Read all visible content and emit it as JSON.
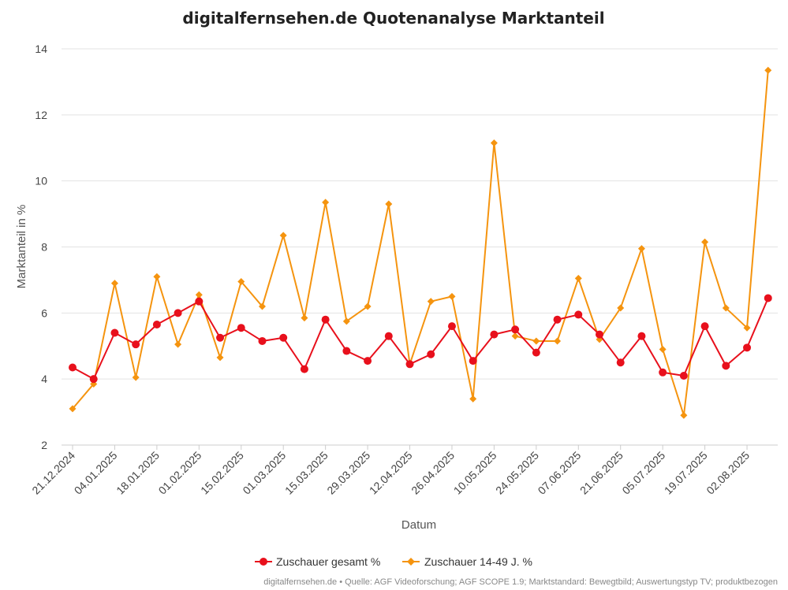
{
  "chart_data": {
    "type": "line",
    "title": "digitalfernsehen.de Quotenanalyse Marktanteil",
    "xlabel": "Datum",
    "ylabel": "Marktanteil in %",
    "ylim": [
      2,
      14
    ],
    "yticks": [
      2,
      4,
      6,
      8,
      10,
      12,
      14
    ],
    "grid": true,
    "legend": "bottom-center",
    "x_tick_labels": [
      "21.12.2024",
      "04.01.2025",
      "18.01.2025",
      "01.02.2025",
      "15.02.2025",
      "01.03.2025",
      "15.03.2025",
      "29.03.2025",
      "12.04.2025",
      "26.04.2025",
      "10.05.2025",
      "24.05.2025",
      "07.06.2025",
      "21.06.2025",
      "05.07.2025",
      "19.07.2025",
      "02.08.2025"
    ],
    "x": [
      "21.12.2024",
      "28.12.2024",
      "04.01.2025",
      "11.01.2025",
      "18.01.2025",
      "25.01.2025",
      "01.02.2025",
      "08.02.2025",
      "15.02.2025",
      "22.02.2025",
      "01.03.2025",
      "08.03.2025",
      "15.03.2025",
      "22.03.2025",
      "29.03.2025",
      "05.04.2025",
      "12.04.2025",
      "19.04.2025",
      "26.04.2025",
      "03.05.2025",
      "10.05.2025",
      "17.05.2025",
      "24.05.2025",
      "31.05.2025",
      "07.06.2025",
      "14.06.2025",
      "21.06.2025",
      "28.06.2025",
      "05.07.2025",
      "12.07.2025",
      "19.07.2025",
      "26.07.2025",
      "02.08.2025",
      "09.08.2025"
    ],
    "series": [
      {
        "name": "Zuschauer gesamt %",
        "color": "#e8101c",
        "marker": "circle",
        "values": [
          4.35,
          4.0,
          5.4,
          5.05,
          5.65,
          6.0,
          6.35,
          5.25,
          5.55,
          5.15,
          5.25,
          4.3,
          5.8,
          4.85,
          4.55,
          5.3,
          4.45,
          4.75,
          5.6,
          4.55,
          5.35,
          5.5,
          4.8,
          5.8,
          5.95,
          5.35,
          4.5,
          5.3,
          4.2,
          4.1,
          5.6,
          4.4,
          4.95,
          6.45
        ]
      },
      {
        "name": "Zuschauer 14-49 J. %",
        "color": "#f5940f",
        "marker": "diamond",
        "values": [
          3.1,
          3.85,
          6.9,
          4.05,
          7.1,
          5.05,
          6.55,
          4.65,
          6.95,
          6.2,
          8.35,
          5.85,
          9.35,
          5.75,
          6.2,
          9.3,
          4.45,
          6.35,
          6.5,
          3.4,
          11.15,
          5.3,
          5.15,
          5.15,
          7.05,
          5.2,
          6.15,
          7.95,
          4.9,
          2.9,
          8.15,
          6.15,
          5.55,
          13.35
        ]
      }
    ]
  },
  "footer": {
    "credits": "digitalfernsehen.de • Quelle: AGF Videoforschung; AGF SCOPE 1.9; Marktstandard: Bewegtbild; Auswertungstyp TV; produktbezogen"
  }
}
